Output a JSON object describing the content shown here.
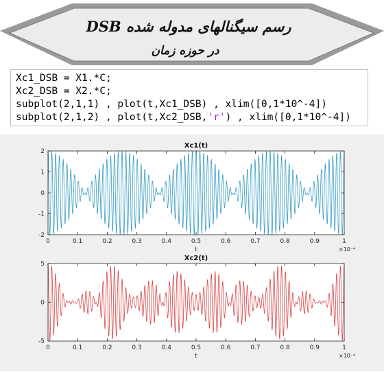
{
  "banner": {
    "title": "رسم سیگنالهای مدوله شده DSB",
    "subtitle": "در حوزه زمان"
  },
  "code": {
    "lines": [
      "Xc1_DSB = X1.*C;",
      "Xc2_DSB = X2.*C;",
      "subplot(2,1,1) , plot(t,Xc1_DSB) , xlim([0,1*10^-4])",
      "subplot(2,1,2) , plot(t,Xc2_DSB,'r') , xlim([0,1*10^-4])"
    ],
    "line4_prefix": "subplot(2,1,2) , plot(t,Xc2_DSB,",
    "line4_string": "'r'",
    "line4_suffix": ") , xlim([0,1*10^-4])"
  },
  "chart_data": [
    {
      "type": "line",
      "title": "Xc1(t)",
      "xlabel": "t",
      "ylabel": "",
      "x_exponent_label": "×10⁻⁴",
      "xlim": [
        0,
        1
      ],
      "ylim": [
        -2,
        2
      ],
      "xticks": [
        "0",
        "0.1",
        "0.2",
        "0.3",
        "0.4",
        "0.5",
        "0.6",
        "0.7",
        "0.8",
        "0.9",
        "1"
      ],
      "yticks": [
        "-2",
        "-1",
        "0",
        "1",
        "2"
      ],
      "color": "#3a9cc4",
      "carrier_cycles": 78,
      "envelope": "2|cos(2π·2·t)|",
      "envelope_components": [
        {
          "amplitude": 2,
          "cycles": 2
        }
      ]
    },
    {
      "type": "line",
      "title": "Xc2(t)",
      "xlabel": "t",
      "ylabel": "",
      "x_exponent_label": "×10⁻⁴",
      "xlim": [
        0,
        1
      ],
      "ylim": [
        -5,
        5
      ],
      "xticks": [
        "0",
        "0.1",
        "0.2",
        "0.3",
        "0.4",
        "0.5",
        "0.6",
        "0.7",
        "0.8",
        "0.9",
        "1"
      ],
      "yticks": [
        "-5",
        "0",
        "5"
      ],
      "color": "#d84848",
      "carrier_cycles": 78,
      "envelope": "|3cos(2π·2·t) + 2cos(2π·7·t)|",
      "envelope_components": [
        {
          "amplitude": 3,
          "cycles": 2
        },
        {
          "amplitude": 2,
          "cycles": 7
        }
      ]
    }
  ]
}
